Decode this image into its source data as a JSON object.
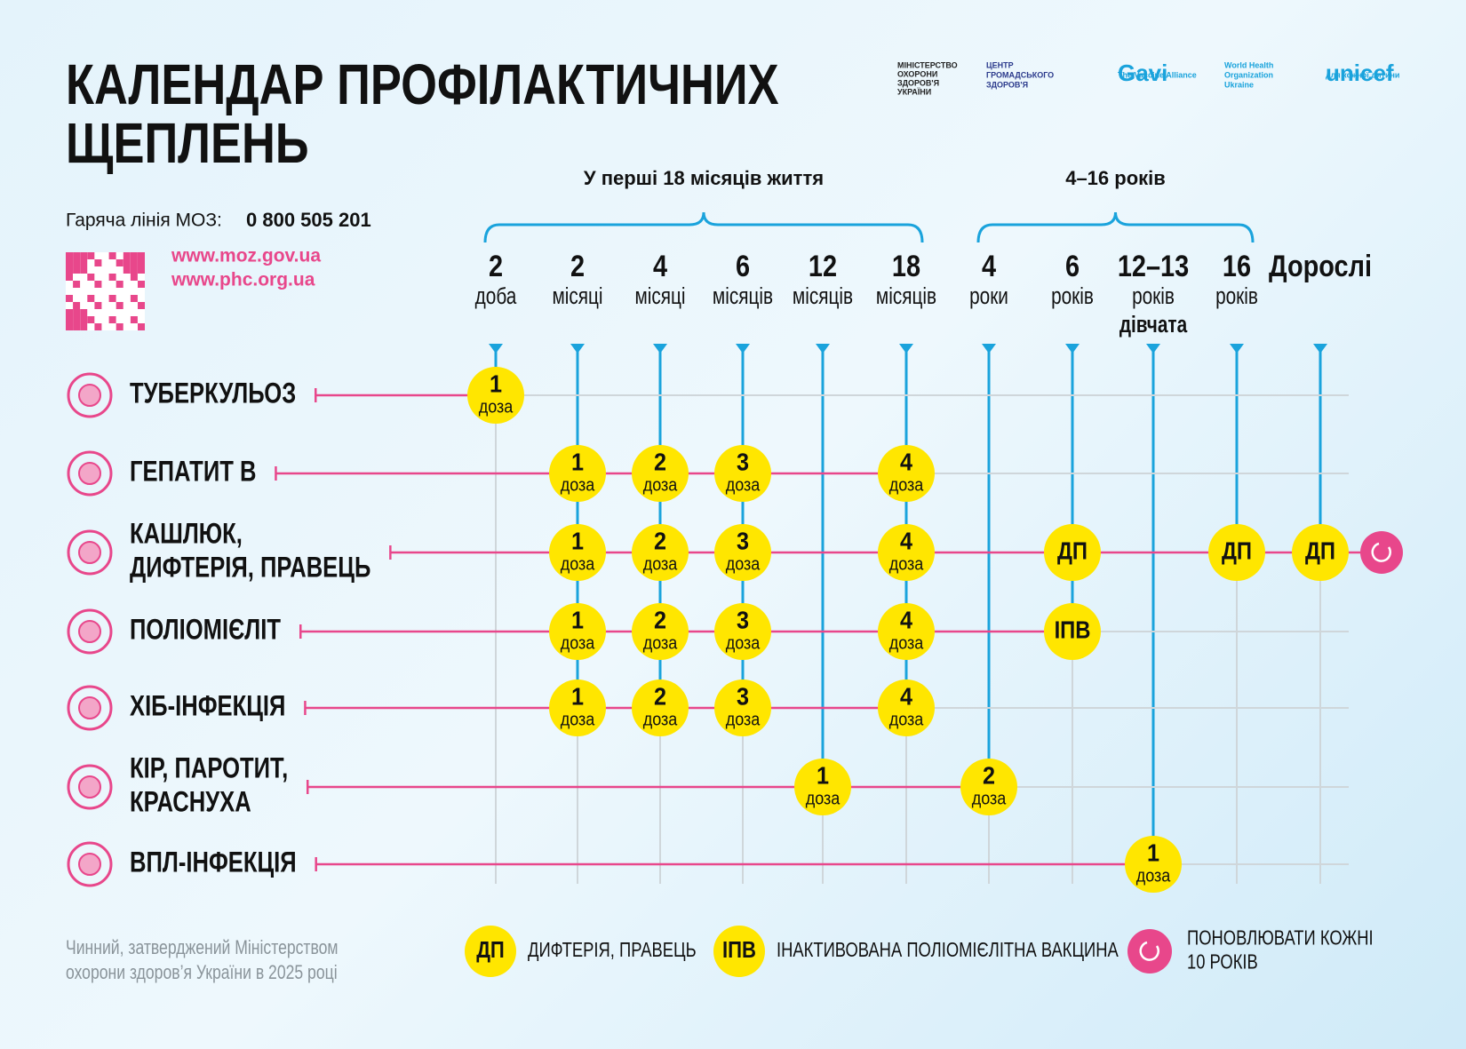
{
  "header": {
    "title_lines": [
      "КАЛЕНДАР ПРОФІЛАКТИЧНИХ",
      "ЩЕПЛЕНЬ"
    ],
    "hotline_label": "Гаряча лінія МОЗ:",
    "hotline_number": "0 800 505 201",
    "links": [
      "www.moz.gov.ua",
      "www.phc.org.ua"
    ]
  },
  "logos": [
    {
      "lines": [
        "МІНІСТЕРСТВО",
        "ОХОРОНИ",
        "ЗДОРОВ'Я",
        "УКРАЇНИ"
      ]
    },
    {
      "lines": [
        "ЦЕНТР",
        "ГРОМАДСЬКОГО",
        "ЗДОРОВ'Я"
      ]
    },
    {
      "lines": [
        "Gavi",
        "The Vaccine Alliance"
      ]
    },
    {
      "lines": [
        "World Health",
        "Organization",
        "Ukraine"
      ]
    },
    {
      "lines": [
        "unicef",
        "для кожної дитини"
      ]
    }
  ],
  "groups": [
    "У перші 18 місяців життя",
    "4–16 років"
  ],
  "columns": [
    {
      "top": "2",
      "bottom": "доба"
    },
    {
      "top": "2",
      "bottom": "місяці"
    },
    {
      "top": "4",
      "bottom": "місяці"
    },
    {
      "top": "6",
      "bottom": "місяців"
    },
    {
      "top": "12",
      "bottom": "місяців"
    },
    {
      "top": "18",
      "bottom": "місяців"
    },
    {
      "top": "4",
      "bottom": "роки"
    },
    {
      "top": "6",
      "bottom": "років"
    },
    {
      "top": "12–13",
      "bottom": "років",
      "note": "дівчата"
    },
    {
      "top": "16",
      "bottom": "років"
    },
    {
      "top": "Дорослі"
    }
  ],
  "rows": [
    {
      "name": [
        "ТУБЕРКУЛЬОЗ"
      ],
      "cells": [
        {
          "main": "1",
          "sub": "доза"
        },
        null,
        null,
        null,
        null,
        null,
        null,
        null,
        null,
        null,
        null
      ]
    },
    {
      "name": [
        "ГЕПАТИТ В"
      ],
      "cells": [
        null,
        {
          "main": "1",
          "sub": "доза"
        },
        {
          "main": "2",
          "sub": "доза"
        },
        {
          "main": "3",
          "sub": "доза"
        },
        null,
        {
          "main": "4",
          "sub": "доза"
        },
        null,
        null,
        null,
        null,
        null
      ]
    },
    {
      "name": [
        "КАШЛЮК,",
        "ДИФТЕРІЯ, ПРАВЕЦЬ"
      ],
      "cells": [
        null,
        {
          "main": "1",
          "sub": "доза"
        },
        {
          "main": "2",
          "sub": "доза"
        },
        {
          "main": "3",
          "sub": "доза"
        },
        null,
        {
          "main": "4",
          "sub": "доза"
        },
        null,
        {
          "main": "ДП"
        },
        null,
        {
          "main": "ДП"
        },
        {
          "main": "ДП"
        }
      ],
      "renew": true
    },
    {
      "name": [
        "ПОЛІОМІЄЛІТ"
      ],
      "cells": [
        null,
        {
          "main": "1",
          "sub": "доза"
        },
        {
          "main": "2",
          "sub": "доза"
        },
        {
          "main": "3",
          "sub": "доза"
        },
        null,
        {
          "main": "4",
          "sub": "доза"
        },
        null,
        {
          "main": "ІПВ"
        },
        null,
        null,
        null
      ]
    },
    {
      "name": [
        "ХІБ-ІНФЕКЦІЯ"
      ],
      "cells": [
        null,
        {
          "main": "1",
          "sub": "доза"
        },
        {
          "main": "2",
          "sub": "доза"
        },
        {
          "main": "3",
          "sub": "доза"
        },
        null,
        {
          "main": "4",
          "sub": "доза"
        },
        null,
        null,
        null,
        null,
        null
      ]
    },
    {
      "name": [
        "КІР, ПАРОТИТ,",
        "КРАСНУХА"
      ],
      "cells": [
        null,
        null,
        null,
        null,
        {
          "main": "1",
          "sub": "доза"
        },
        null,
        {
          "main": "2",
          "sub": "доза"
        },
        null,
        null,
        null,
        null
      ]
    },
    {
      "name": [
        "ВПЛ-ІНФЕКЦІЯ"
      ],
      "cells": [
        null,
        null,
        null,
        null,
        null,
        null,
        null,
        null,
        {
          "main": "1",
          "sub": "доза"
        },
        null,
        null
      ]
    }
  ],
  "legend": [
    {
      "mark": "ДП",
      "text": [
        "ДИФТЕРІЯ, ПРАВЕЦЬ"
      ]
    },
    {
      "mark": "ІПВ",
      "text": [
        "ІНАКТИВОВАНА ПОЛІОМІЄЛІТНА ВАКЦИНА"
      ]
    },
    {
      "text": [
        "ПОНОВЛЮВАТИ КОЖНІ",
        "10 РОКІВ"
      ]
    }
  ],
  "footer": [
    "Чинний, затверджений Міністерством",
    "охорони здоров’я України в 2025 році"
  ]
}
